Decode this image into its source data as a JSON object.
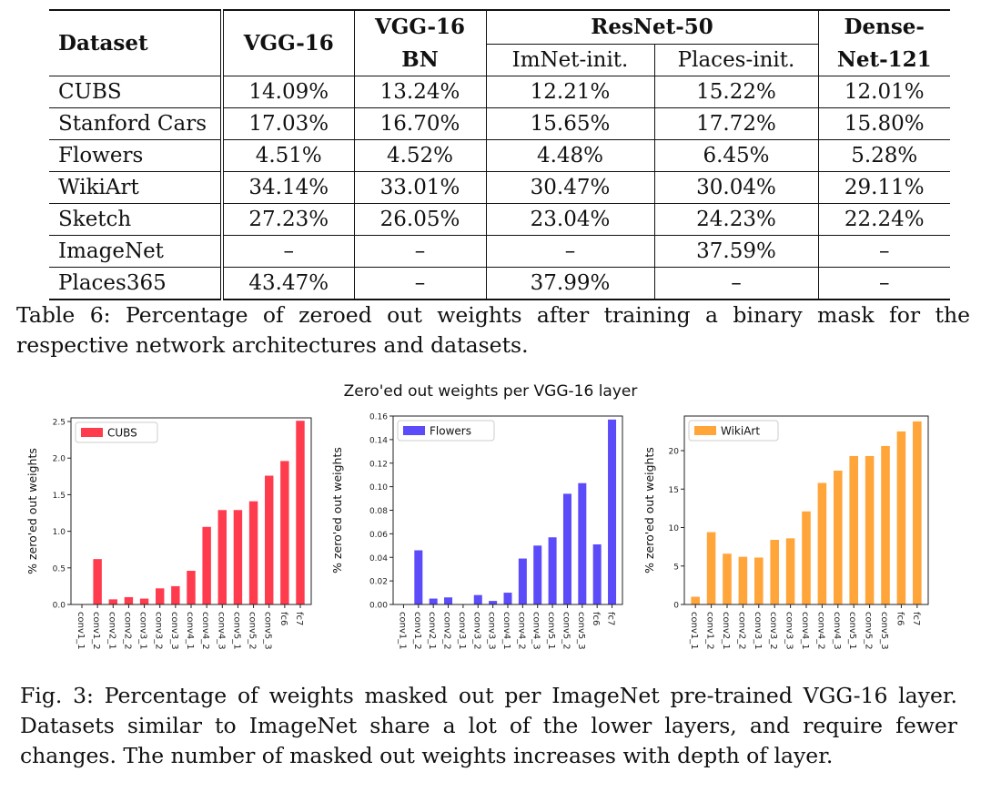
{
  "table": {
    "headers": {
      "dataset": "Dataset",
      "vgg16": "VGG-16",
      "vgg16bn_line1": "VGG-16",
      "vgg16bn_line2": "BN",
      "resnet50": "ResNet-50",
      "imnet_init": "ImNet-init.",
      "places_init": "Places-init.",
      "densenet_line1": "Dense-",
      "densenet_line2": "Net-121"
    },
    "rows": [
      {
        "dataset": "CUBS",
        "vgg16": "14.09%",
        "vgg16bn": "13.24%",
        "imnet": "12.21%",
        "places": "15.22%",
        "densenet": "12.01%"
      },
      {
        "dataset": "Stanford Cars",
        "vgg16": "17.03%",
        "vgg16bn": "16.70%",
        "imnet": "15.65%",
        "places": "17.72%",
        "densenet": "15.80%"
      },
      {
        "dataset": "Flowers",
        "vgg16": "4.51%",
        "vgg16bn": "4.52%",
        "imnet": "4.48%",
        "places": "6.45%",
        "densenet": "5.28%"
      },
      {
        "dataset": "WikiArt",
        "vgg16": "34.14%",
        "vgg16bn": "33.01%",
        "imnet": "30.47%",
        "places": "30.04%",
        "densenet": "29.11%"
      },
      {
        "dataset": "Sketch",
        "vgg16": "27.23%",
        "vgg16bn": "26.05%",
        "imnet": "23.04%",
        "places": "24.23%",
        "densenet": "22.24%"
      },
      {
        "dataset": "ImageNet",
        "vgg16": "–",
        "vgg16bn": "–",
        "imnet": "–",
        "places": "37.59%",
        "densenet": "–"
      },
      {
        "dataset": "Places365",
        "vgg16": "43.47%",
        "vgg16bn": "–",
        "imnet": "37.99%",
        "places": "–",
        "densenet": "–"
      }
    ]
  },
  "table_caption": "Table 6: Percentage of zeroed out weights after training a binary mask for the respective network architectures and datasets.",
  "figure_title": "Zero'ed out weights per VGG-16 layer",
  "figure_caption": "Fig. 3: Percentage of weights masked out per ImageNet pre-trained VGG-16 layer. Datasets similar to ImageNet share a lot of the lower layers, and require fewer changes. The number of masked out weights increases with depth of layer.",
  "chart_data": [
    {
      "type": "bar",
      "title": "",
      "legend": "CUBS",
      "color": "#ff3b4e",
      "xlabel": "",
      "ylabel": "% zero'ed out weights",
      "categories": [
        "conv1_1",
        "conv1_2",
        "conv2_1",
        "conv2_2",
        "conv3_1",
        "conv3_2",
        "conv3_3",
        "conv4_1",
        "conv4_2",
        "conv4_3",
        "conv5_1",
        "conv5_2",
        "conv5_3",
        "fc6",
        "fc7"
      ],
      "values": [
        0.0,
        0.62,
        0.07,
        0.1,
        0.08,
        0.22,
        0.25,
        0.46,
        1.06,
        1.29,
        1.29,
        1.41,
        1.76,
        1.96,
        2.51
      ],
      "ylim": [
        0,
        2.55
      ],
      "yticks": [
        0.0,
        0.5,
        1.0,
        1.5,
        2.0,
        2.5
      ],
      "ytick_labels": [
        "0.0",
        "0.5",
        "1.0",
        "1.5",
        "2.0",
        "2.5"
      ]
    },
    {
      "type": "bar",
      "title": "",
      "legend": "Flowers",
      "color": "#5b4bf8",
      "xlabel": "",
      "ylabel": "% zero'ed out weights",
      "categories": [
        "conv1_1",
        "conv1_2",
        "conv2_1",
        "conv2_2",
        "conv3_1",
        "conv3_2",
        "conv3_3",
        "conv4_1",
        "conv4_2",
        "conv4_3",
        "conv5_1",
        "conv5_2",
        "conv5_3",
        "fc6",
        "fc7"
      ],
      "values": [
        0.0,
        0.046,
        0.005,
        0.006,
        0.0,
        0.008,
        0.003,
        0.01,
        0.039,
        0.05,
        0.057,
        0.094,
        0.103,
        0.051,
        0.157
      ],
      "ylim": [
        0,
        0.16
      ],
      "yticks": [
        0.0,
        0.02,
        0.04,
        0.06,
        0.08,
        0.1,
        0.12,
        0.14,
        0.16
      ],
      "ytick_labels": [
        "0.00",
        "0.02",
        "0.04",
        "0.06",
        "0.08",
        "0.10",
        "0.12",
        "0.14",
        "0.16"
      ]
    },
    {
      "type": "bar",
      "title": "",
      "legend": "WikiArt",
      "color": "#ffa53a",
      "xlabel": "",
      "ylabel": "% zero'ed out weights",
      "categories": [
        "conv1_1",
        "conv1_2",
        "conv2_1",
        "conv2_2",
        "conv3_1",
        "conv3_2",
        "conv3_3",
        "conv4_1",
        "conv4_2",
        "conv4_3",
        "conv5_1",
        "conv5_2",
        "conv5_3",
        "fc6",
        "fc7"
      ],
      "values": [
        1.0,
        9.4,
        6.6,
        6.2,
        6.1,
        8.4,
        8.6,
        12.1,
        15.8,
        17.4,
        19.3,
        19.3,
        20.6,
        22.5,
        23.8
      ],
      "ylim": [
        0,
        24.5
      ],
      "yticks": [
        0,
        5,
        10,
        15,
        20
      ],
      "ytick_labels": [
        "0",
        "5",
        "10",
        "15",
        "20"
      ]
    }
  ]
}
